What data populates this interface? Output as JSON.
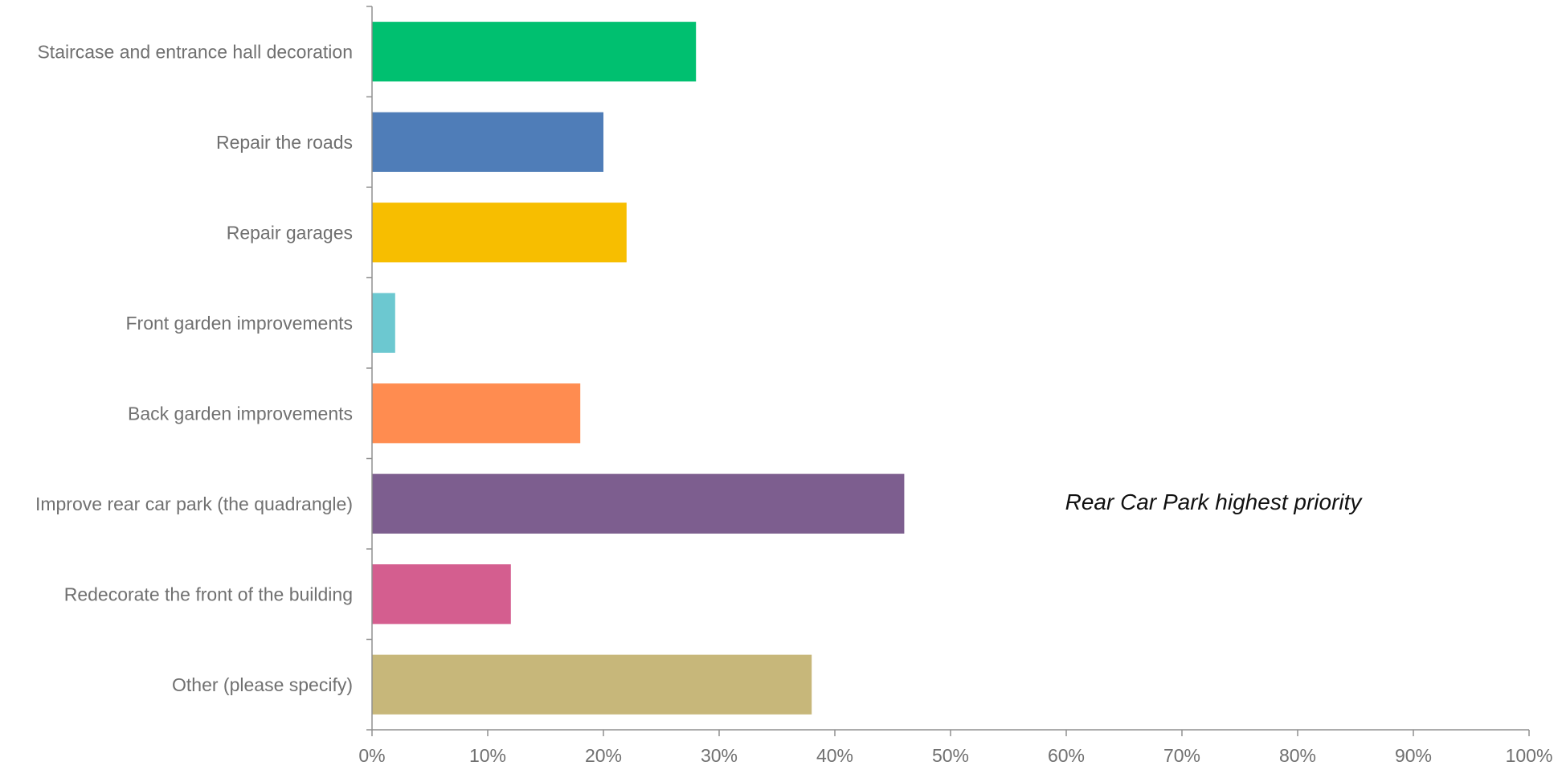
{
  "chart_data": {
    "type": "bar",
    "orientation": "horizontal",
    "title": "",
    "xlabel": "",
    "ylabel": "",
    "categories": [
      "Staircase and entrance hall decoration",
      "Repair the roads",
      "Repair garages",
      "Front garden improvements",
      "Back garden improvements",
      "Improve rear car park (the quadrangle)",
      "Redecorate the front of the building",
      "Other (please specify)"
    ],
    "values": [
      28,
      20,
      22,
      2,
      18,
      46,
      12,
      38
    ],
    "colors": [
      "#00c070",
      "#4f7db8",
      "#f7be00",
      "#6cc8d0",
      "#ff8c50",
      "#7d5e8f",
      "#d45e8f",
      "#c7b77a"
    ],
    "xlim": [
      0,
      100
    ],
    "x_ticks": [
      0,
      10,
      20,
      30,
      40,
      50,
      60,
      70,
      80,
      90,
      100
    ],
    "x_tick_labels": [
      "0%",
      "10%",
      "20%",
      "30%",
      "40%",
      "50%",
      "60%",
      "70%",
      "80%",
      "90%",
      "100%"
    ],
    "grid": false,
    "legend": "none",
    "annotation": "Rear Car Park highest priority"
  }
}
